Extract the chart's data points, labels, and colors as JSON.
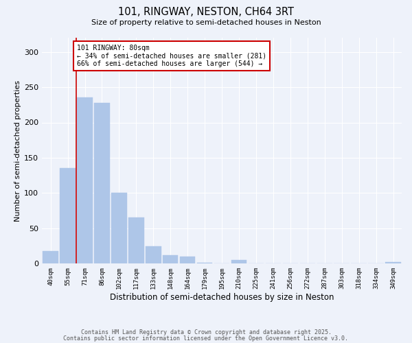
{
  "title": "101, RINGWAY, NESTON, CH64 3RT",
  "subtitle": "Size of property relative to semi-detached houses in Neston",
  "xlabel": "Distribution of semi-detached houses by size in Neston",
  "ylabel": "Number of semi-detached properties",
  "bar_labels": [
    "40sqm",
    "55sqm",
    "71sqm",
    "86sqm",
    "102sqm",
    "117sqm",
    "133sqm",
    "148sqm",
    "164sqm",
    "179sqm",
    "195sqm",
    "210sqm",
    "225sqm",
    "241sqm",
    "256sqm",
    "272sqm",
    "287sqm",
    "303sqm",
    "318sqm",
    "334sqm",
    "349sqm"
  ],
  "bar_values": [
    18,
    135,
    235,
    228,
    100,
    65,
    25,
    12,
    10,
    1,
    0,
    5,
    0,
    0,
    0,
    0,
    0,
    0,
    0,
    0,
    2
  ],
  "bar_color": "#aec6e8",
  "bar_edge_color": "#aec6e8",
  "annotation_text": "101 RINGWAY: 80sqm\n← 34% of semi-detached houses are smaller (281)\n66% of semi-detached houses are larger (544) →",
  "annotation_box_color": "#ffffff",
  "annotation_border_color": "#cc0000",
  "vline_color": "#cc0000",
  "ylim": [
    0,
    320
  ],
  "yticks": [
    0,
    50,
    100,
    150,
    200,
    250,
    300
  ],
  "background_color": "#eef2fa",
  "grid_color": "#ffffff",
  "footer_line1": "Contains HM Land Registry data © Crown copyright and database right 2025.",
  "footer_line2": "Contains public sector information licensed under the Open Government Licence v3.0."
}
